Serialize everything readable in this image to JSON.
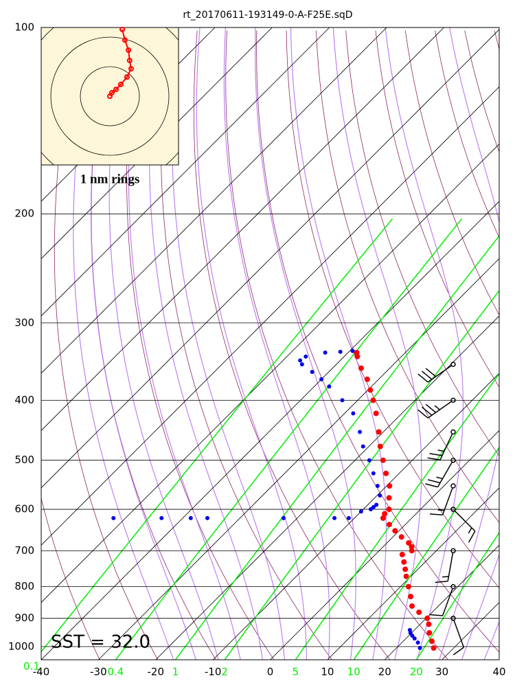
{
  "chart_data": {
    "type": "skewt",
    "title": "rt_20170611-193149-0-A-F25E.sqD",
    "annotation": "SST = 32.0",
    "log_y": true,
    "ylim": [
      1050,
      100
    ],
    "yticks": [
      100,
      200,
      300,
      400,
      500,
      600,
      700,
      800,
      900,
      1000
    ],
    "xlim": [
      -40,
      40
    ],
    "xticks": [
      -40,
      -30,
      -20,
      -10,
      0,
      10,
      20,
      30,
      40
    ],
    "mixing_ratios": [
      0.1,
      0.4,
      1,
      2,
      5,
      10,
      20
    ],
    "mixing_ratio_color": "#00ee00",
    "series": [
      {
        "color": "#ff0000",
        "pressure": [
          1005,
          980,
          950,
          920,
          900,
          880,
          860,
          830,
          800,
          770,
          750,
          730,
          710,
          700,
          690,
          680,
          665,
          650,
          635,
          620,
          610,
          600,
          575,
          550,
          525,
          500,
          475,
          450,
          420,
          400,
          385,
          370,
          355,
          340,
          335
        ],
        "values": [
          26.5,
          25,
          23.1,
          21.5,
          20.2,
          17.7,
          15.4,
          13.5,
          11.4,
          9.2,
          7.8,
          6.3,
          4.7,
          5.7,
          5.0,
          3.8,
          1.5,
          -0.7,
          -2.8,
          -5,
          -5.5,
          -5.5,
          -7.5,
          -9.5,
          -12.3,
          -15.1,
          -18,
          -20.8,
          -24.5,
          -27.3,
          -29.6,
          -32,
          -35,
          -37.7,
          -38.5
        ]
      },
      {
        "color": "#0000ee",
        "pressure": [
          1005,
          985,
          970,
          960,
          950,
          940,
          620,
          620,
          620,
          620,
          620,
          620,
          620,
          605,
          600,
          595,
          590,
          570,
          550,
          525,
          500,
          475,
          450,
          420,
          400,
          380,
          370,
          360,
          350,
          345,
          340,
          335,
          334,
          333
        ],
        "values": [
          24.1,
          22.8,
          21.5,
          20.6,
          19.8,
          19.2,
          -52.1,
          -43.7,
          -38.6,
          -35.7,
          -22.4,
          -13.5,
          -11,
          -10,
          -8.7,
          -8.6,
          -8.5,
          -9.5,
          -11.6,
          -14.5,
          -17.5,
          -21,
          -24.1,
          -28.5,
          -32.7,
          -37.4,
          -40,
          -42.9,
          -46,
          -47,
          -46.7,
          -44,
          -41.5,
          -39.5
        ]
      }
    ],
    "winds": {
      "pressure": [
        350,
        400,
        450,
        500,
        550,
        600,
        700,
        800,
        900
      ],
      "direction": [
        235,
        235,
        205,
        210,
        200,
        135,
        190,
        200,
        160
      ],
      "speed": [
        30,
        35,
        25,
        25,
        15,
        15,
        15,
        10,
        10
      ]
    },
    "hodograph": {
      "label": "1 nm rings",
      "color": "#ff0000",
      "x": [
        0,
        0.07,
        0.21,
        0.37,
        0.58,
        0.72,
        0.67,
        0.63,
        0.51,
        0.42
      ],
      "y": [
        0,
        0.12,
        0.23,
        0.4,
        0.65,
        0.93,
        1.21,
        1.56,
        1.9,
        2.26
      ]
    }
  }
}
